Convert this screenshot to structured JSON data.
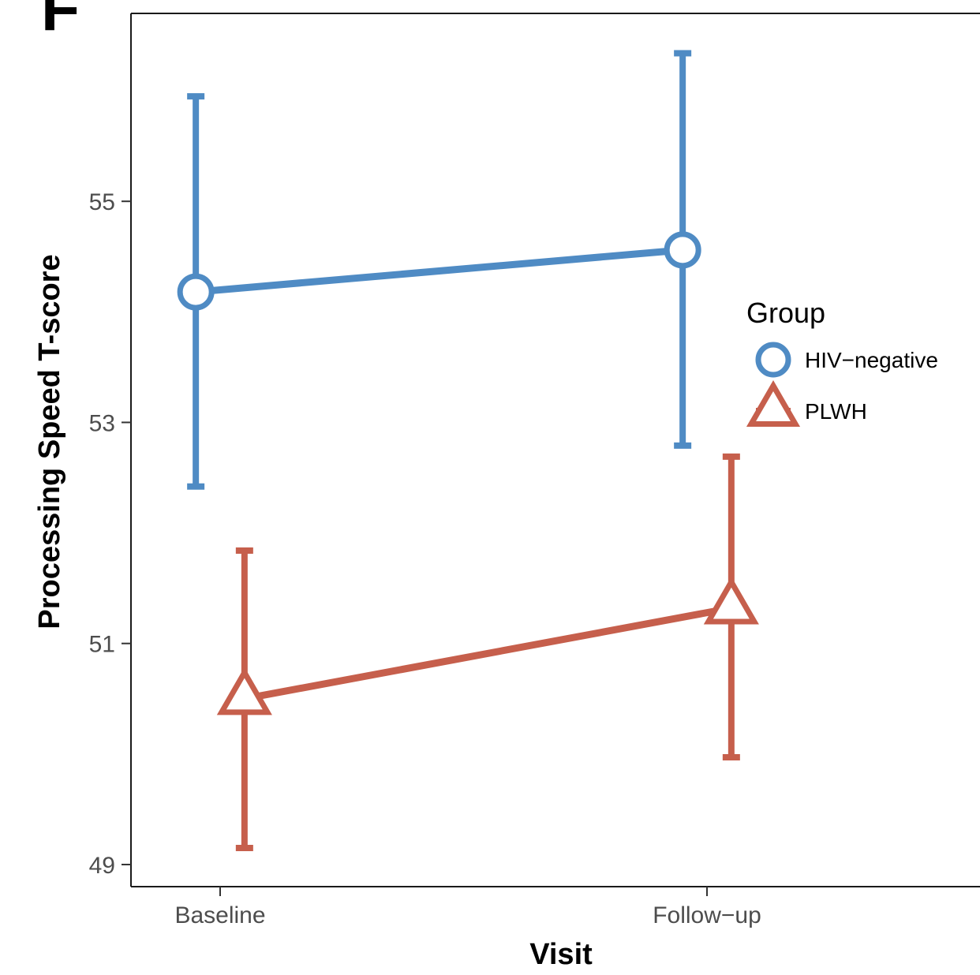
{
  "panel_label": "F",
  "chart_data": {
    "type": "line",
    "categories": [
      "Baseline",
      "Follow−up"
    ],
    "xlabel": "Visit",
    "ylabel": "Processing Speed T-score",
    "ylim": [
      48.8,
      56.7
    ],
    "yticks": [
      "49",
      "51",
      "53",
      "55"
    ],
    "grid": false,
    "legend": {
      "title": "Group",
      "placement": "right"
    },
    "series": [
      {
        "name": "HIV−negative",
        "color": "#4f8bc4",
        "marker": "circle-open",
        "values": [
          54.18,
          54.56
        ],
        "lower": [
          52.42,
          52.79
        ],
        "upper": [
          55.95,
          56.34
        ],
        "x_offset": -0.05
      },
      {
        "name": "PLWH",
        "color": "#c65f4c",
        "marker": "triangle-open",
        "values": [
          50.5,
          51.32
        ],
        "lower": [
          49.15,
          49.97
        ],
        "upper": [
          51.84,
          52.69
        ],
        "x_offset": 0.05
      }
    ]
  }
}
